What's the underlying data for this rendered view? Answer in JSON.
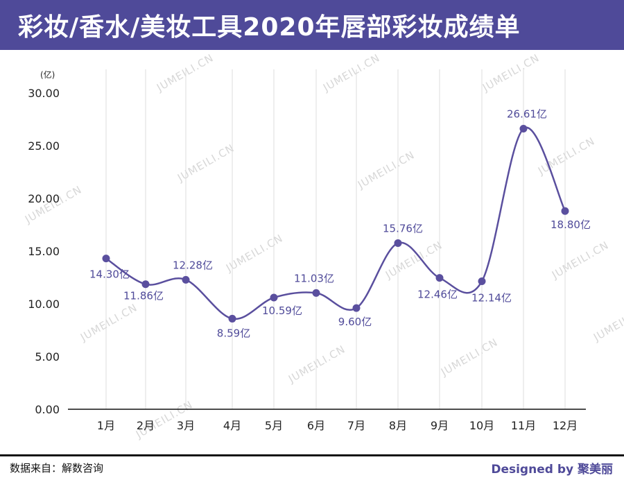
{
  "header": {
    "title": "彩妆/香水/美妆工具2020年唇部彩妆成绩单"
  },
  "footer": {
    "source": "数据来自：解数咨询",
    "credit": "Designed by 聚美丽"
  },
  "watermark": "JUMEILI.CN",
  "colors": {
    "header_bg": "#4f4a99",
    "line": "#5a4f9e",
    "label": "#4f4a99"
  },
  "chart_data": {
    "type": "line",
    "title": "",
    "unit": "(亿)",
    "categories": [
      "1月",
      "2月",
      "3月",
      "4月",
      "5月",
      "6月",
      "7月",
      "8月",
      "9月",
      "10月",
      "11月",
      "12月"
    ],
    "values": [
      14.3,
      11.86,
      12.28,
      8.59,
      10.59,
      11.03,
      9.6,
      15.76,
      12.46,
      12.14,
      26.61,
      18.8
    ],
    "data_labels": [
      "14.30亿",
      "11.86亿",
      "12.28亿",
      "8.59亿",
      "10.59亿",
      "11.03亿",
      "9.60亿",
      "15.76亿",
      "12.46亿",
      "12.14亿",
      "26.61亿",
      "18.80亿"
    ],
    "y_ticks": [
      "0.00",
      "5.00",
      "10.00",
      "15.00",
      "20.00",
      "25.00",
      "30.00"
    ],
    "ylim": [
      0,
      30
    ],
    "grid": "vertical",
    "smooth": true
  }
}
